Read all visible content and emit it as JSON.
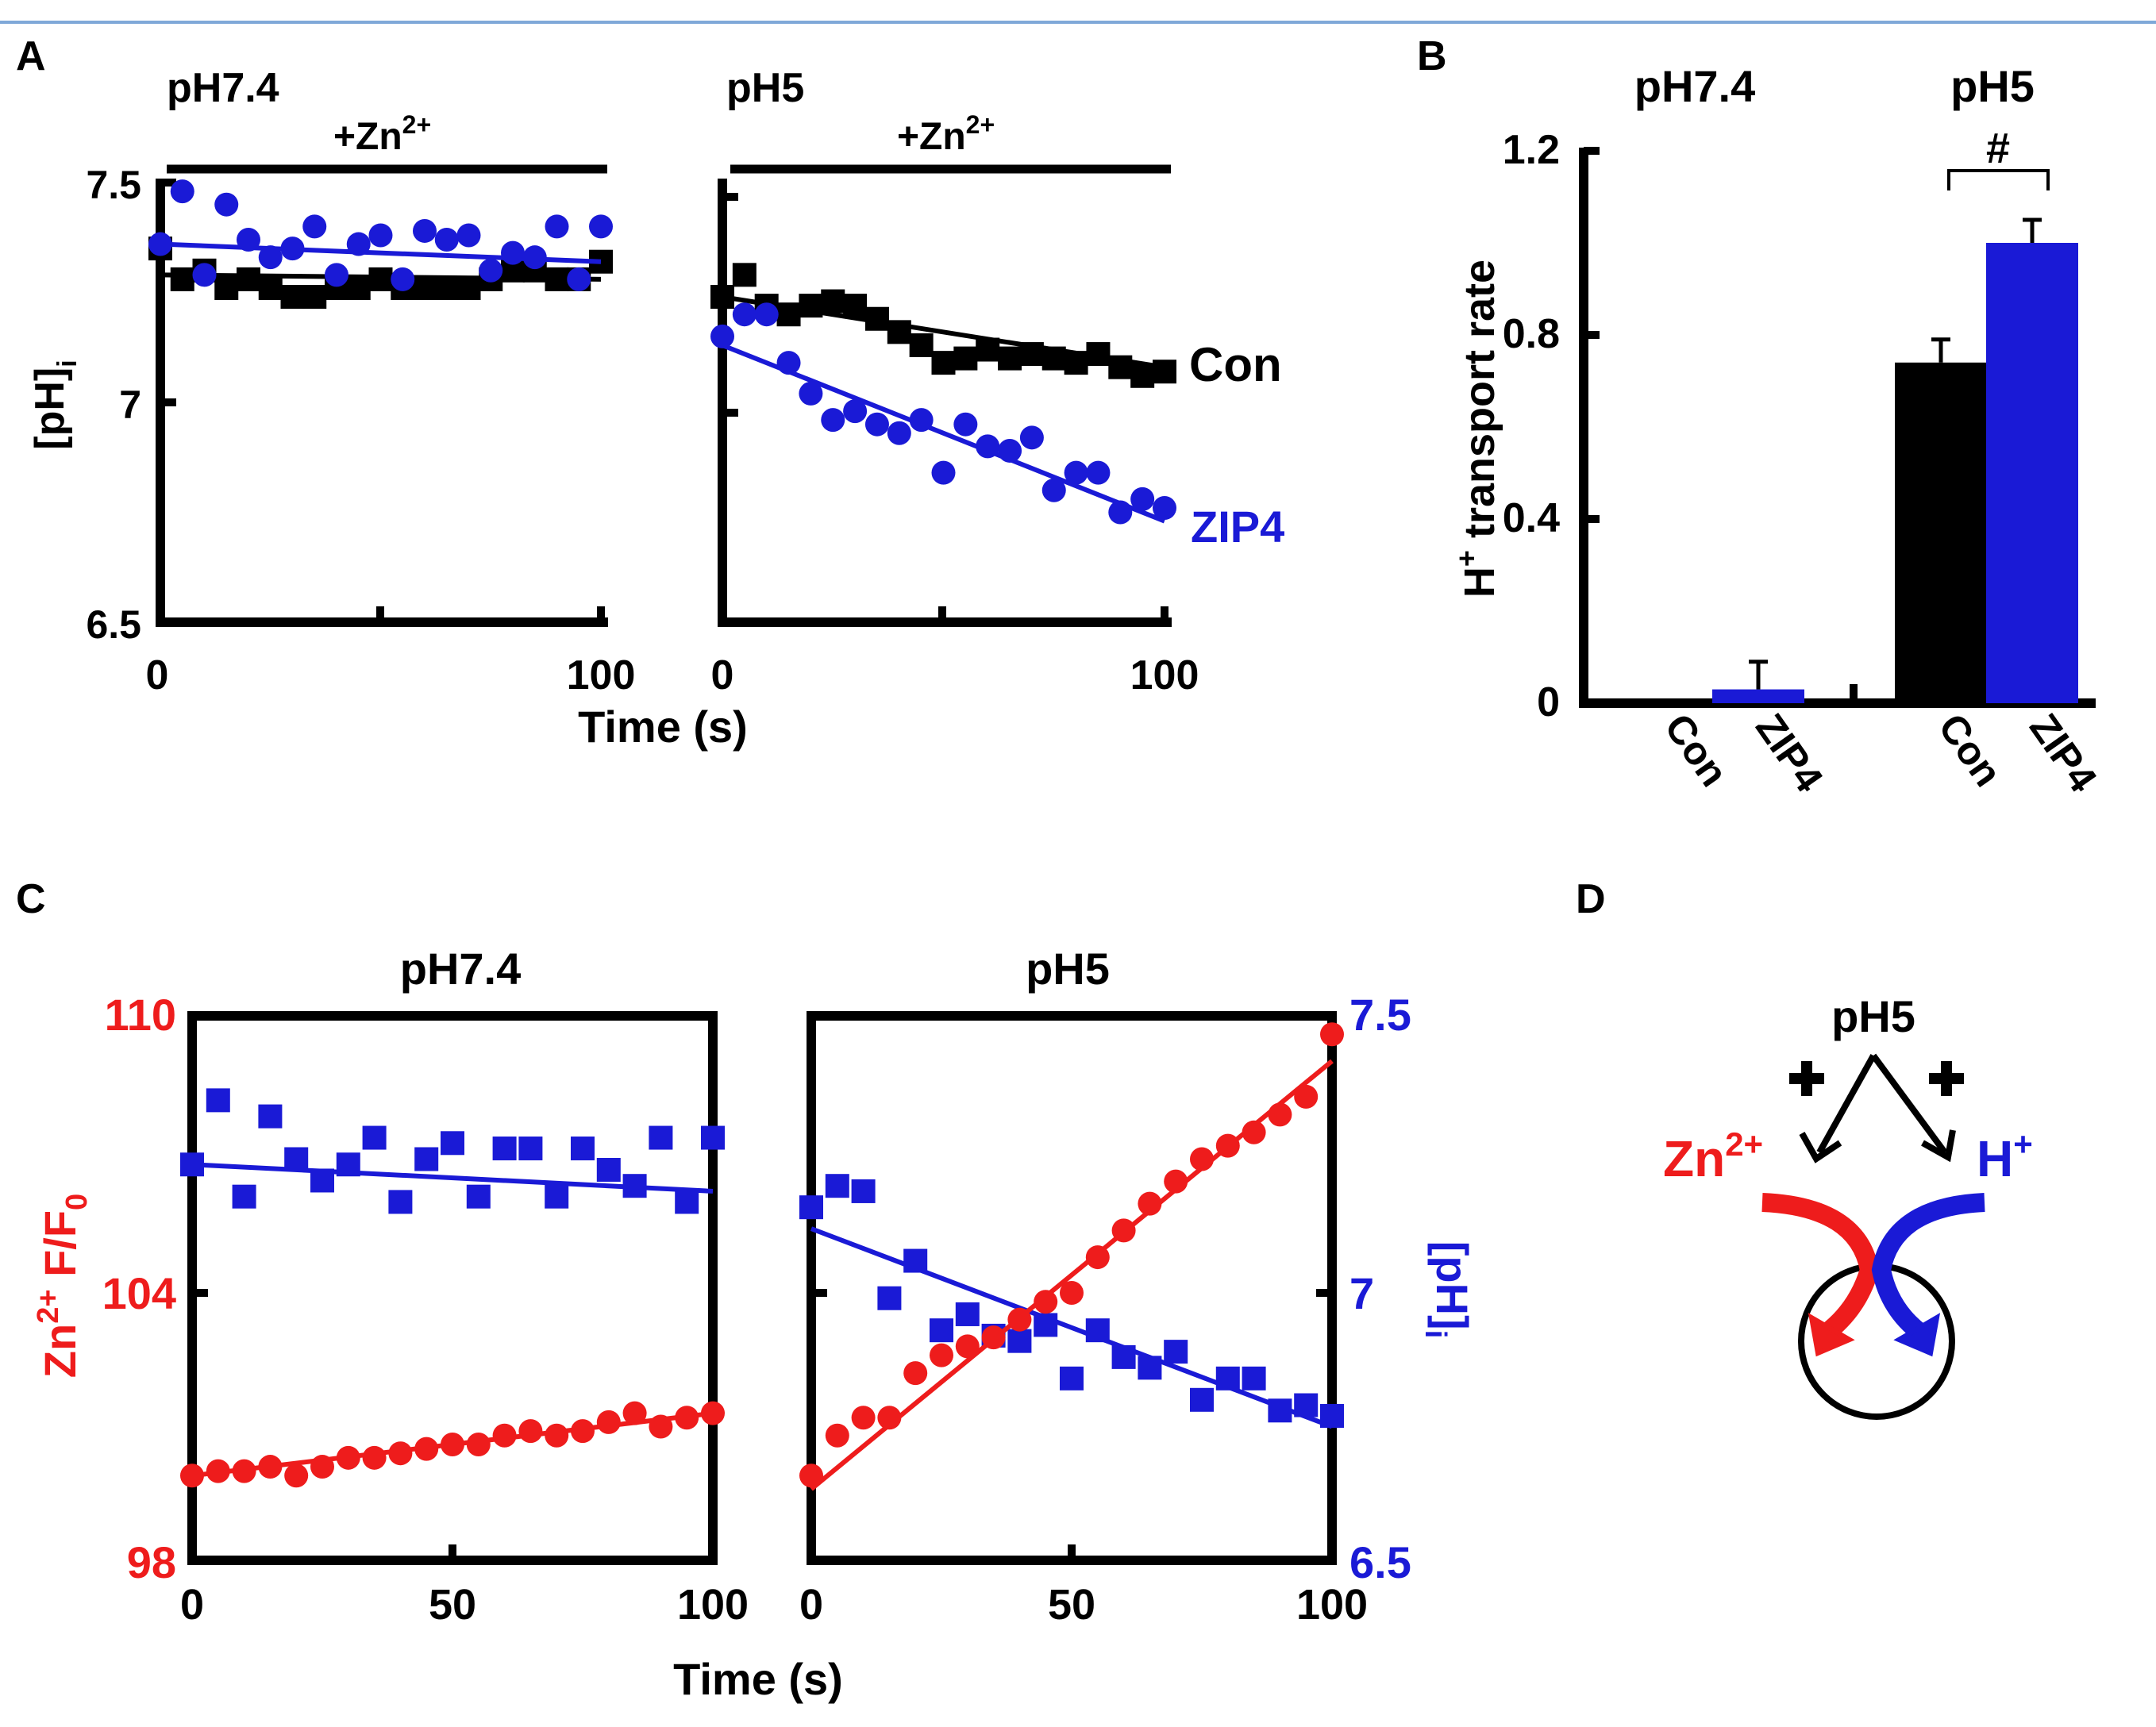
{
  "colors": {
    "con": "#000000",
    "zip4": "#1a1ad6",
    "zn": "#ee1c1c",
    "h": "#1a1ad6",
    "frame": "#7fa8d8"
  },
  "panel_labels": {
    "a": "A",
    "b": "B",
    "c": "C",
    "d": "D"
  },
  "chart_data": [
    {
      "id": "A-pH7.4",
      "type": "scatter",
      "title": "pH7.4",
      "bar_label": "+Zn",
      "xlabel": "Time (s)",
      "ylabel": "[pH]",
      "ylabel_sub": "i",
      "xlim": [
        0,
        100
      ],
      "ylim": [
        6.5,
        7.5
      ],
      "xticks": [
        "0",
        "100"
      ],
      "yticks": [
        "6.5",
        "7",
        "7.5"
      ],
      "series": [
        {
          "name": "Con",
          "marker": "square",
          "color": "#000000",
          "x": [
            0,
            5,
            10,
            15,
            20,
            25,
            30,
            35,
            40,
            45,
            50,
            55,
            60,
            65,
            70,
            75,
            80,
            85,
            90,
            95,
            100
          ],
          "y": [
            7.35,
            7.28,
            7.3,
            7.26,
            7.28,
            7.26,
            7.24,
            7.24,
            7.26,
            7.26,
            7.28,
            7.26,
            7.26,
            7.26,
            7.26,
            7.28,
            7.3,
            7.3,
            7.28,
            7.28,
            7.32
          ],
          "fit": [
            7.29,
            7.28
          ]
        },
        {
          "name": "ZIP4",
          "marker": "circle",
          "color": "#1a1ad6",
          "x": [
            0,
            5,
            10,
            15,
            20,
            25,
            30,
            35,
            40,
            45,
            50,
            55,
            60,
            65,
            70,
            75,
            80,
            85,
            90,
            95,
            100
          ],
          "y": [
            7.36,
            7.48,
            7.29,
            7.45,
            7.37,
            7.33,
            7.35,
            7.4,
            7.29,
            7.36,
            7.38,
            7.28,
            7.39,
            7.37,
            7.38,
            7.3,
            7.34,
            7.33,
            7.4,
            7.28,
            7.4
          ],
          "fit": [
            7.36,
            7.32
          ]
        }
      ]
    },
    {
      "id": "A-pH5",
      "type": "scatter",
      "title": "pH5",
      "bar_label": "+Zn",
      "xlim": [
        0,
        100
      ],
      "ylim": [
        6.5,
        7.5
      ],
      "xticks": [
        "0",
        "100"
      ],
      "series": [
        {
          "name": "Con",
          "marker": "square",
          "color": "#000000",
          "x": [
            0,
            5,
            10,
            15,
            20,
            25,
            30,
            35,
            40,
            45,
            50,
            55,
            60,
            65,
            70,
            75,
            80,
            85,
            90,
            95,
            100
          ],
          "y": [
            7.24,
            7.29,
            7.22,
            7.2,
            7.22,
            7.23,
            7.22,
            7.19,
            7.16,
            7.13,
            7.09,
            7.1,
            7.12,
            7.1,
            7.11,
            7.1,
            7.09,
            7.11,
            7.08,
            7.06,
            7.07
          ],
          "fit": [
            7.24,
            7.08
          ]
        },
        {
          "name": "ZIP4",
          "marker": "circle",
          "color": "#1a1ad6",
          "x": [
            0,
            5,
            10,
            15,
            20,
            25,
            30,
            35,
            40,
            45,
            50,
            55,
            60,
            65,
            70,
            75,
            80,
            85,
            90,
            95,
            100
          ],
          "y": [
            7.15,
            7.2,
            7.2,
            7.09,
            7.02,
            6.96,
            6.98,
            6.95,
            6.93,
            6.96,
            6.84,
            6.95,
            6.9,
            6.89,
            6.92,
            6.8,
            6.84,
            6.84,
            6.75,
            6.78,
            6.76
          ],
          "fit": [
            7.13,
            6.73
          ]
        }
      ],
      "labels": {
        "con": "Con",
        "zip4": "ZIP4"
      }
    },
    {
      "id": "B",
      "type": "bar",
      "groups": [
        "pH7.4",
        "pH5"
      ],
      "categories": [
        "Con",
        "ZIP4",
        "Con",
        "ZIP4"
      ],
      "values": [
        0.0,
        0.03,
        0.74,
        1.0
      ],
      "errors": [
        0.0,
        0.06,
        0.05,
        0.05
      ],
      "colors": [
        "#000000",
        "#1a1ad6",
        "#000000",
        "#1a1ad6"
      ],
      "ylabel": "H",
      "ylabel_sup": "+",
      "ylabel_rest": " transport rate",
      "ylim": [
        0,
        1.2
      ],
      "yticks": [
        "0",
        "0.4",
        "0.8",
        "1.2"
      ],
      "significance": "#"
    },
    {
      "id": "C-pH7.4",
      "type": "scatter",
      "title": "pH7.4",
      "xlabel": "Time (s)",
      "xlim": [
        0,
        100
      ],
      "left_ylim": [
        98,
        110
      ],
      "right_ylim": [
        6.5,
        7.5
      ],
      "xticks": [
        "0",
        "50",
        "100"
      ],
      "left_yticks": [
        "98",
        "104",
        "110"
      ],
      "left_ylabel": "Zn",
      "left_ylabel_sup": "2+",
      "left_ylabel_rest": " F/F",
      "left_ylabel_sub": "0",
      "series": [
        {
          "name": "pH",
          "axis": "right",
          "marker": "square",
          "color": "#1a1ad6",
          "x": [
            0,
            5,
            10,
            15,
            20,
            25,
            30,
            35,
            40,
            45,
            50,
            55,
            60,
            65,
            70,
            75,
            80,
            85,
            90,
            95,
            100
          ],
          "y": [
            7.24,
            7.36,
            7.18,
            7.33,
            7.25,
            7.21,
            7.24,
            7.29,
            7.17,
            7.25,
            7.28,
            7.18,
            7.27,
            7.27,
            7.18,
            7.27,
            7.23,
            7.2,
            7.29,
            7.17,
            7.29
          ],
          "fit": [
            7.24,
            7.19
          ]
        },
        {
          "name": "Zn",
          "axis": "left",
          "marker": "circle",
          "color": "#ee1c1c",
          "x": [
            0,
            5,
            10,
            15,
            20,
            25,
            30,
            35,
            40,
            45,
            50,
            55,
            60,
            65,
            70,
            75,
            80,
            85,
            90,
            95,
            100
          ],
          "y": [
            99.9,
            100.0,
            100.0,
            100.1,
            99.9,
            100.1,
            100.3,
            100.3,
            100.4,
            100.5,
            100.6,
            100.6,
            100.8,
            100.9,
            100.8,
            100.9,
            101.1,
            101.3,
            101.0,
            101.2,
            101.3
          ],
          "fit": [
            99.9,
            101.3
          ]
        }
      ]
    },
    {
      "id": "C-pH5",
      "type": "scatter",
      "title": "pH5",
      "xlim": [
        0,
        100
      ],
      "left_ylim": [
        98,
        110
      ],
      "right_ylim": [
        6.5,
        7.5
      ],
      "xticks": [
        "0",
        "50",
        "100"
      ],
      "right_yticks": [
        "6.5",
        "7",
        "7.5"
      ],
      "right_ylabel": "[pH]",
      "right_ylabel_sub": "i",
      "series": [
        {
          "name": "pH",
          "axis": "right",
          "marker": "square",
          "color": "#1a1ad6",
          "x": [
            0,
            5,
            10,
            15,
            20,
            25,
            30,
            35,
            40,
            45,
            50,
            55,
            60,
            65,
            70,
            75,
            80,
            85,
            90,
            95,
            100
          ],
          "y": [
            7.16,
            7.2,
            7.19,
            6.99,
            7.06,
            6.93,
            6.96,
            6.92,
            6.91,
            6.94,
            6.84,
            6.93,
            6.88,
            6.86,
            6.89,
            6.8,
            6.84,
            6.84,
            6.78,
            6.79,
            6.77
          ],
          "fit": [
            7.12,
            6.75
          ]
        },
        {
          "name": "Zn",
          "axis": "left",
          "marker": "circle",
          "color": "#ee1c1c",
          "x": [
            0,
            5,
            10,
            15,
            20,
            25,
            30,
            35,
            40,
            45,
            50,
            55,
            60,
            65,
            70,
            75,
            80,
            85,
            90,
            95,
            100
          ],
          "y": [
            99.9,
            100.8,
            101.2,
            101.2,
            102.2,
            102.6,
            102.8,
            103.0,
            103.4,
            103.8,
            104.0,
            104.8,
            105.4,
            106.0,
            106.5,
            107.0,
            107.3,
            107.6,
            108.0,
            108.4,
            109.8
          ],
          "fit": [
            99.6,
            109.2
          ]
        }
      ]
    },
    {
      "id": "D",
      "type": "diagram",
      "top": "pH5",
      "left_ion": "Zn",
      "left_ion_sup": "2+",
      "right_ion": "H",
      "right_ion_sup": "+"
    }
  ]
}
